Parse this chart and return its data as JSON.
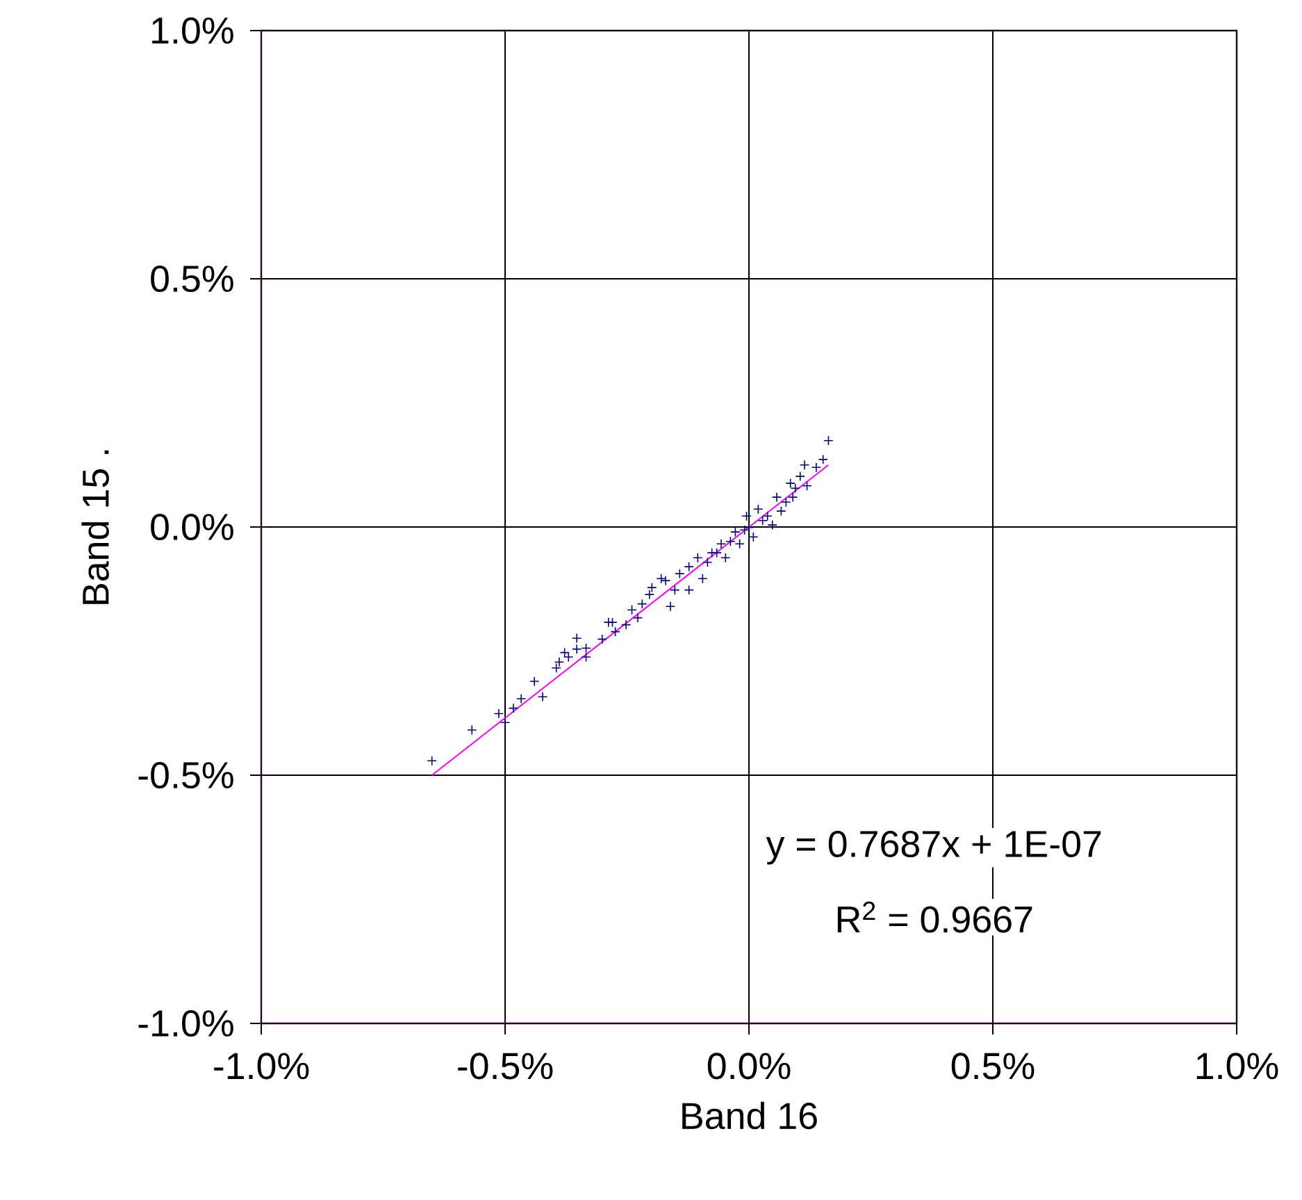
{
  "chart_data": {
    "type": "scatter",
    "xlabel": "Band 16",
    "ylabel": "Band 15 .",
    "xlim": [
      -1.0,
      1.0
    ],
    "ylim": [
      -1.0,
      1.0
    ],
    "xticks": [
      {
        "value": -1.0,
        "label": "-1.0%"
      },
      {
        "value": -0.5,
        "label": "-0.5%"
      },
      {
        "value": 0.0,
        "label": "0.0%"
      },
      {
        "value": 0.5,
        "label": "0.5%"
      },
      {
        "value": 1.0,
        "label": "1.0%"
      }
    ],
    "yticks": [
      {
        "value": -1.0,
        "label": "-1.0%"
      },
      {
        "value": -0.5,
        "label": "-0.5%"
      },
      {
        "value": 0.0,
        "label": "0.0%"
      },
      {
        "value": 0.5,
        "label": "0.5%"
      },
      {
        "value": 1.0,
        "label": "1.0%"
      }
    ],
    "grid": true,
    "marker": "cross",
    "series": [
      {
        "color": "#000080",
        "x": [
          -0.65,
          -0.568,
          -0.513,
          -0.5,
          -0.483,
          -0.467,
          -0.44,
          -0.423,
          -0.395,
          -0.389,
          -0.378,
          -0.37,
          -0.353,
          -0.353,
          -0.334,
          -0.334,
          -0.301,
          -0.288,
          -0.28,
          -0.274,
          -0.252,
          -0.24,
          -0.228,
          -0.219,
          -0.204,
          -0.199,
          -0.161,
          -0.171,
          -0.142,
          -0.123,
          -0.105,
          -0.095,
          -0.076,
          -0.057,
          -0.048,
          -0.028,
          -0.019,
          -0.005,
          0.0,
          0.009,
          0.019,
          0.038,
          0.048,
          0.057,
          0.066,
          0.085,
          0.09,
          0.105,
          0.114,
          0.119,
          0.138,
          0.152,
          0.163,
          -0.123,
          -0.085,
          -0.066,
          -0.038,
          -0.009,
          0.028,
          0.076,
          0.095,
          -0.152,
          -0.18
        ],
        "values": [
          -0.471,
          -0.409,
          -0.376,
          -0.394,
          -0.365,
          -0.346,
          -0.311,
          -0.342,
          -0.284,
          -0.272,
          -0.253,
          -0.262,
          -0.224,
          -0.246,
          -0.244,
          -0.262,
          -0.226,
          -0.192,
          -0.192,
          -0.211,
          -0.197,
          -0.167,
          -0.183,
          -0.155,
          -0.136,
          -0.122,
          -0.16,
          -0.108,
          -0.094,
          -0.127,
          -0.062,
          -0.104,
          -0.052,
          -0.034,
          -0.062,
          -0.01,
          -0.034,
          0.022,
          -0.001,
          -0.02,
          0.036,
          0.022,
          0.004,
          0.06,
          0.032,
          0.088,
          0.06,
          0.102,
          0.125,
          0.083,
          0.12,
          0.136,
          0.174,
          -0.08,
          -0.071,
          -0.052,
          -0.029,
          -0.006,
          0.013,
          0.05,
          0.078,
          -0.127,
          -0.104
        ]
      },
      {
        "type": "line",
        "color": "#ff00ff",
        "marker": "none",
        "x": [
          -0.65,
          0.163
        ],
        "values": [
          -0.5,
          0.125
        ]
      }
    ],
    "annotations": [
      "y = 0.7687x + 1E-07",
      "R$^{2}$ = 0.9667"
    ]
  }
}
